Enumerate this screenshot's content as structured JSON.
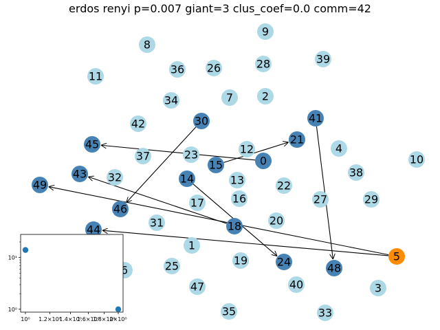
{
  "title": "erdos renyi p=0.007 giant=3 clus_coef=0.0 comm=42",
  "colors": {
    "default": "#add8e6",
    "degree1": "#4682b4",
    "hub": "#ff8c00",
    "edge": "#000000",
    "inset_point": "#1f77b4"
  },
  "nodes": [
    {
      "id": "0",
      "type": "degree1"
    },
    {
      "id": "1",
      "type": "default"
    },
    {
      "id": "2",
      "type": "default"
    },
    {
      "id": "3",
      "type": "default"
    },
    {
      "id": "4",
      "type": "default"
    },
    {
      "id": "5",
      "type": "hub"
    },
    {
      "id": "6",
      "type": "default"
    },
    {
      "id": "7",
      "type": "default"
    },
    {
      "id": "8",
      "type": "default"
    },
    {
      "id": "9",
      "type": "default"
    },
    {
      "id": "10",
      "type": "default"
    },
    {
      "id": "11",
      "type": "default"
    },
    {
      "id": "12",
      "type": "default"
    },
    {
      "id": "13",
      "type": "default"
    },
    {
      "id": "14",
      "type": "degree1"
    },
    {
      "id": "15",
      "type": "degree1"
    },
    {
      "id": "16",
      "type": "default"
    },
    {
      "id": "17",
      "type": "default"
    },
    {
      "id": "18",
      "type": "degree1"
    },
    {
      "id": "19",
      "type": "default"
    },
    {
      "id": "20",
      "type": "default"
    },
    {
      "id": "21",
      "type": "degree1"
    },
    {
      "id": "22",
      "type": "default"
    },
    {
      "id": "23",
      "type": "default"
    },
    {
      "id": "24",
      "type": "degree1"
    },
    {
      "id": "25",
      "type": "default"
    },
    {
      "id": "26",
      "type": "default"
    },
    {
      "id": "27",
      "type": "default"
    },
    {
      "id": "28",
      "type": "default"
    },
    {
      "id": "29",
      "type": "default"
    },
    {
      "id": "30",
      "type": "degree1"
    },
    {
      "id": "31",
      "type": "default"
    },
    {
      "id": "32",
      "type": "default"
    },
    {
      "id": "33",
      "type": "default"
    },
    {
      "id": "34",
      "type": "default"
    },
    {
      "id": "35",
      "type": "default"
    },
    {
      "id": "36",
      "type": "default"
    },
    {
      "id": "37",
      "type": "default"
    },
    {
      "id": "38",
      "type": "default"
    },
    {
      "id": "39",
      "type": "default"
    },
    {
      "id": "40",
      "type": "default"
    },
    {
      "id": "41",
      "type": "degree1"
    },
    {
      "id": "42",
      "type": "default"
    },
    {
      "id": "43",
      "type": "degree1"
    },
    {
      "id": "44",
      "type": "degree1"
    },
    {
      "id": "45",
      "type": "degree1"
    },
    {
      "id": "46",
      "type": "degree1"
    },
    {
      "id": "47",
      "type": "default"
    },
    {
      "id": "48",
      "type": "degree1"
    },
    {
      "id": "49",
      "type": "degree1"
    }
  ],
  "edges": [
    {
      "from": "0",
      "to": "45"
    },
    {
      "from": "15",
      "to": "21"
    },
    {
      "from": "30",
      "to": "46"
    },
    {
      "from": "14",
      "to": "24"
    },
    {
      "from": "41",
      "to": "48"
    },
    {
      "from": "18",
      "to": "43"
    },
    {
      "from": "5",
      "to": "49"
    },
    {
      "from": "5",
      "to": "44"
    }
  ],
  "inset": {
    "type": "scatter",
    "x_scale": "log",
    "y_scale": "log",
    "x_tick_labels": [
      "10⁰",
      "1.2×10⁰",
      "1.4×10⁰",
      "1.6×10⁰",
      "1.8×10⁰",
      "2×10⁰"
    ],
    "y_tick_labels": [
      "10⁰",
      "10¹"
    ],
    "points": [
      {
        "x": 1,
        "y": 14
      },
      {
        "x": 2,
        "y": 1
      }
    ]
  }
}
